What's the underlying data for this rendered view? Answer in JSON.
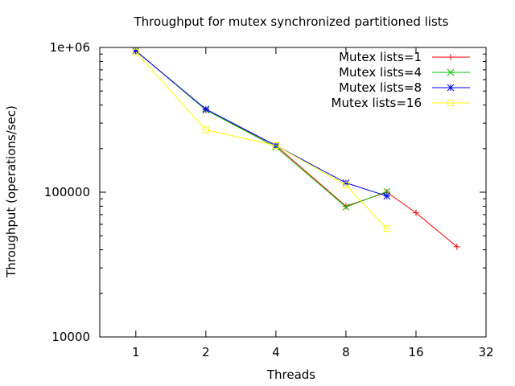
{
  "chart_data": {
    "type": "line",
    "title": "Throughput for mutex synchronized partitioned lists",
    "xlabel": "Threads",
    "ylabel": "Throughput (operations/sec)",
    "x_scale": "log2",
    "y_scale": "log10",
    "xlim": [
      0.7,
      32
    ],
    "ylim": [
      10000,
      1000000
    ],
    "x_ticks": [
      1,
      2,
      4,
      8,
      16,
      32
    ],
    "x_tick_labels": [
      "1",
      "2",
      "4",
      "8",
      "16",
      "32"
    ],
    "y_ticks": [
      10000,
      100000,
      1000000
    ],
    "y_tick_labels": [
      "10000",
      "100000",
      "1e+06"
    ],
    "legend_position": "top-right",
    "grid": false,
    "series": [
      {
        "name": "Mutex lists=1",
        "color": "#ff0000",
        "marker": "plus",
        "points": [
          [
            1,
            950000
          ],
          [
            2,
            370000
          ],
          [
            4,
            210000
          ],
          [
            8,
            80000
          ],
          [
            12,
            100000
          ],
          [
            16,
            72000
          ],
          [
            24,
            42000
          ]
        ]
      },
      {
        "name": "Mutex lists=4",
        "color": "#00c000",
        "marker": "cross",
        "points": [
          [
            1,
            950000
          ],
          [
            2,
            370000
          ],
          [
            4,
            205000
          ],
          [
            8,
            79000
          ],
          [
            12,
            101000
          ]
        ]
      },
      {
        "name": "Mutex lists=8",
        "color": "#0000ff",
        "marker": "star",
        "points": [
          [
            1,
            945000
          ],
          [
            2,
            375000
          ],
          [
            4,
            210000
          ],
          [
            8,
            116000
          ],
          [
            12,
            94000
          ]
        ]
      },
      {
        "name": "Mutex lists=16",
        "color": "#ffff00",
        "marker": "square",
        "points": [
          [
            1,
            930000
          ],
          [
            2,
            270000
          ],
          [
            4,
            210000
          ],
          [
            8,
            112000
          ],
          [
            12,
            56000
          ]
        ]
      }
    ]
  }
}
